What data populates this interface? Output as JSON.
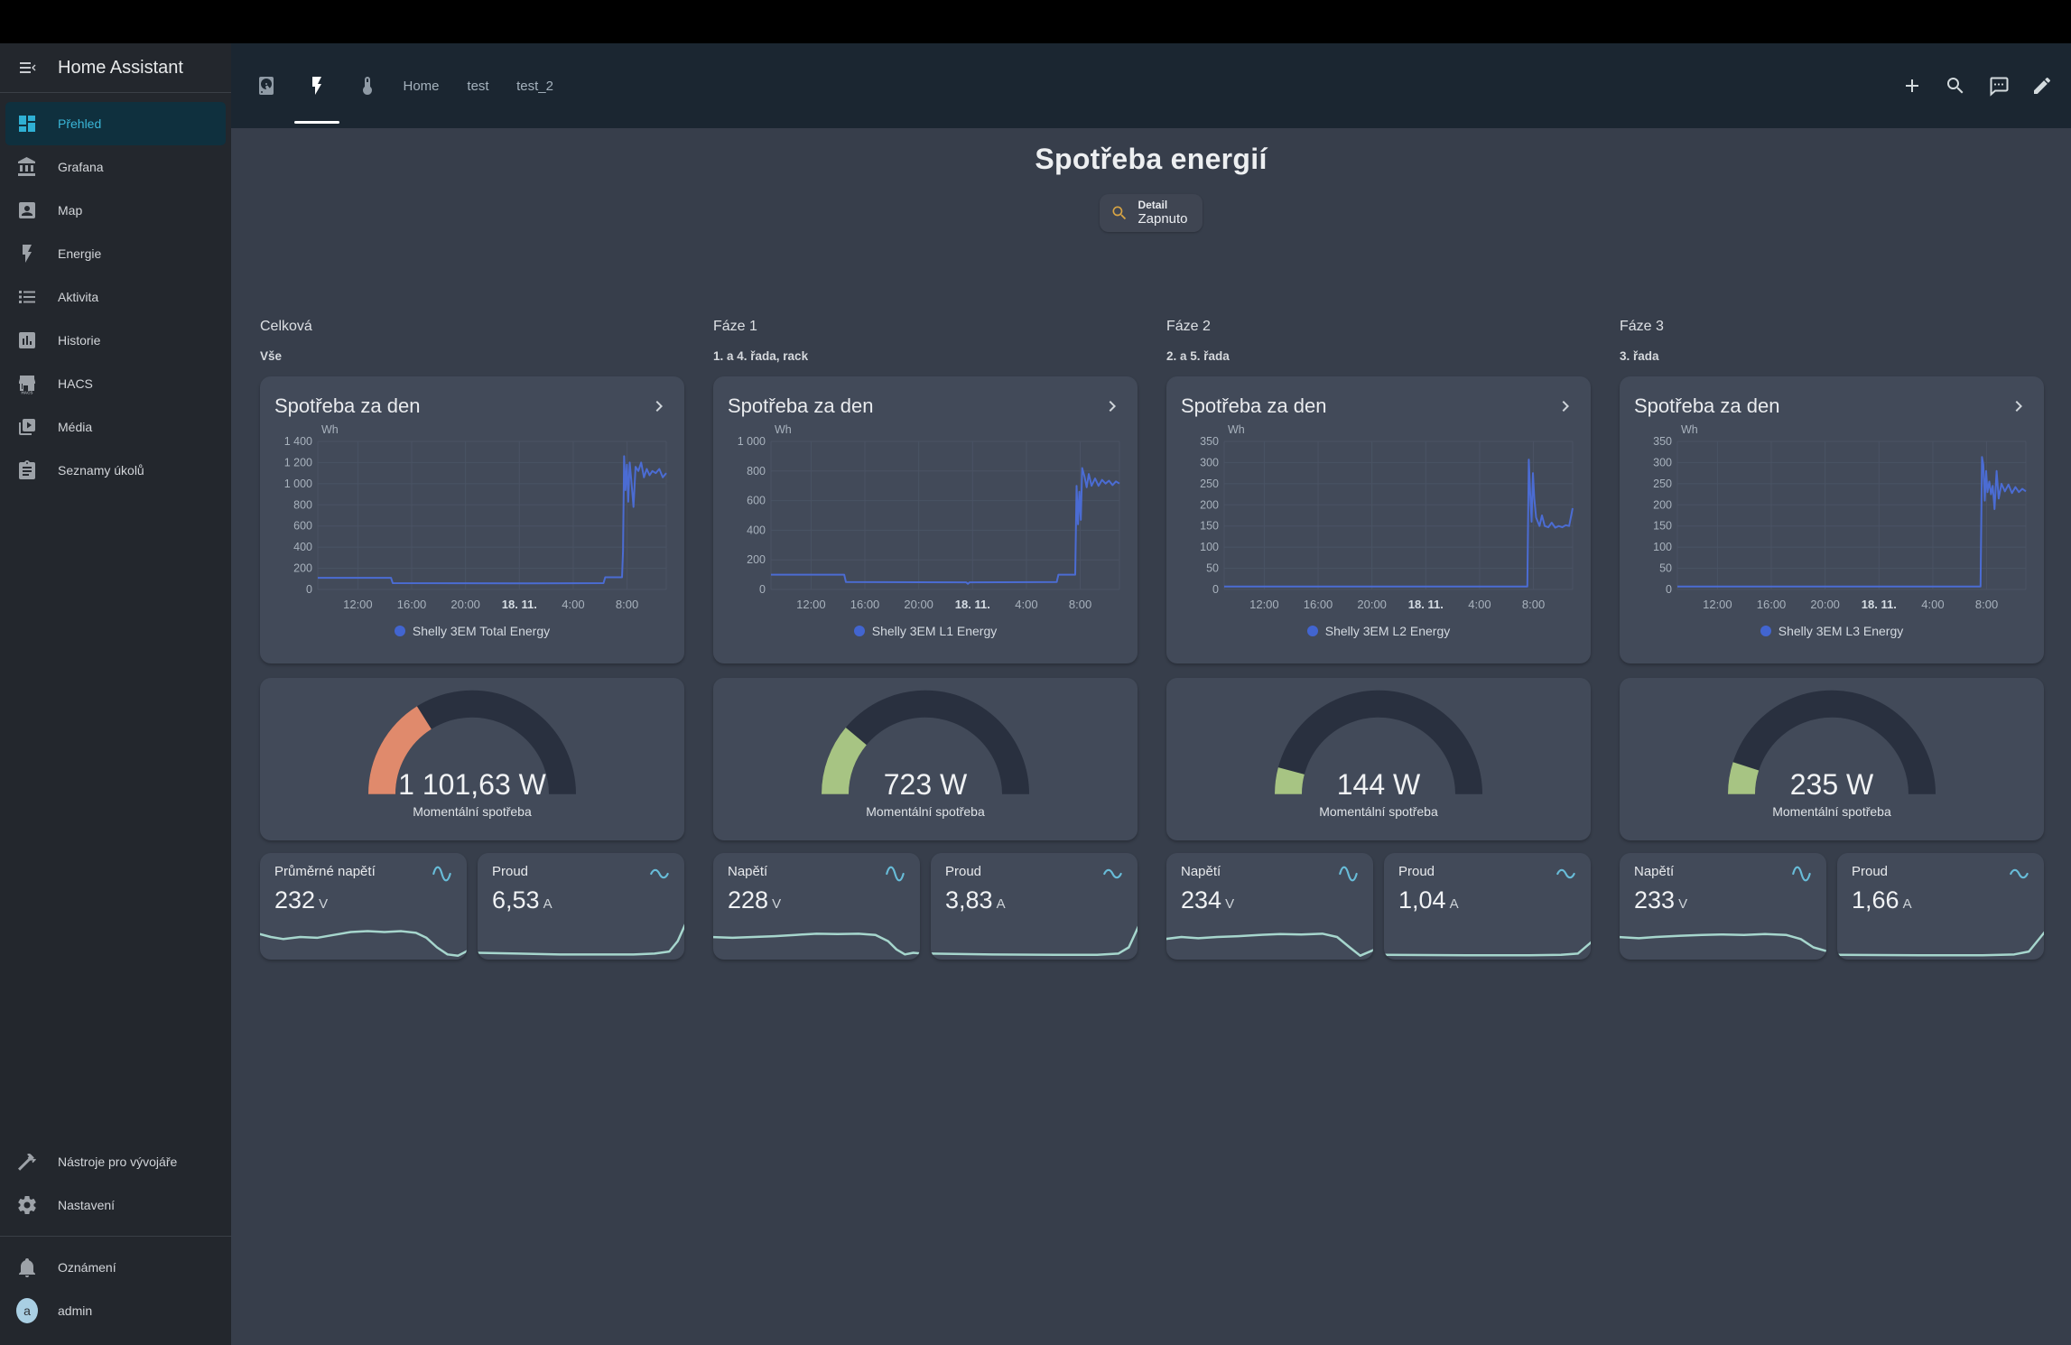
{
  "app": {
    "title": "Home Assistant"
  },
  "topbar": {
    "tabs": [
      {
        "icon": "harddisk",
        "label": "",
        "active": false
      },
      {
        "icon": "flash",
        "label": "",
        "active": true
      },
      {
        "icon": "thermometer",
        "label": "",
        "active": false
      },
      {
        "icon": "",
        "label": "Home",
        "active": false
      },
      {
        "icon": "",
        "label": "test",
        "active": false
      },
      {
        "icon": "",
        "label": "test_2",
        "active": false
      }
    ],
    "actions": [
      "plus",
      "magnify",
      "comment-dots",
      "pencil"
    ]
  },
  "sidebar": {
    "items": [
      {
        "icon": "view-dashboard",
        "label": "Přehled",
        "active": true
      },
      {
        "icon": "bank",
        "label": "Grafana",
        "active": false
      },
      {
        "icon": "account-box",
        "label": "Map",
        "active": false
      },
      {
        "icon": "flash",
        "label": "Energie",
        "active": false
      },
      {
        "icon": "format-list",
        "label": "Aktivita",
        "active": false
      },
      {
        "icon": "chart-box",
        "label": "Historie",
        "active": false
      },
      {
        "icon": "store",
        "label": "HACS",
        "active": false
      },
      {
        "icon": "play-box",
        "label": "Média",
        "active": false
      },
      {
        "icon": "clipboard-list",
        "label": "Seznamy úkolů",
        "active": false
      }
    ],
    "footer_items": [
      {
        "icon": "hammer",
        "label": "Nástroje pro vývojáře"
      },
      {
        "icon": "cog",
        "label": "Nastavení"
      }
    ],
    "notifications": {
      "label": "Oznámení"
    },
    "user": {
      "avatar_letter": "a",
      "label": "admin"
    }
  },
  "page": {
    "title": "Spotřeba energií",
    "chip": {
      "name": "Detail",
      "state": "Zapnuto"
    }
  },
  "columns": [
    {
      "header": "Celková",
      "subheader": "Vše",
      "gauge": {
        "value": "1 101,63 W",
        "label": "Momentální spotřeba",
        "fill_deg": 58,
        "color": "#e08a6c"
      },
      "sensors": [
        {
          "name": "Průměrné napětí",
          "value": "232",
          "unit": "V",
          "icon": "sine-wave",
          "spark": [
            [
              0,
              0.42
            ],
            [
              0.06,
              0.5
            ],
            [
              0.12,
              0.55
            ],
            [
              0.2,
              0.5
            ],
            [
              0.28,
              0.52
            ],
            [
              0.36,
              0.45
            ],
            [
              0.44,
              0.38
            ],
            [
              0.52,
              0.36
            ],
            [
              0.6,
              0.38
            ],
            [
              0.68,
              0.36
            ],
            [
              0.75,
              0.4
            ],
            [
              0.8,
              0.52
            ],
            [
              0.85,
              0.75
            ],
            [
              0.9,
              0.92
            ],
            [
              0.95,
              0.95
            ],
            [
              1,
              0.82
            ]
          ]
        },
        {
          "name": "Proud",
          "value": "6,53",
          "unit": "A",
          "icon": "current-ac",
          "spark": [
            [
              0,
              0.88
            ],
            [
              0.2,
              0.9
            ],
            [
              0.4,
              0.92
            ],
            [
              0.6,
              0.92
            ],
            [
              0.75,
              0.92
            ],
            [
              0.85,
              0.9
            ],
            [
              0.92,
              0.85
            ],
            [
              0.96,
              0.6
            ],
            [
              1,
              0.15
            ]
          ]
        }
      ]
    },
    {
      "header": "Fáze 1",
      "subheader": "1. a 4. řada, rack",
      "gauge": {
        "value": "723 W",
        "label": "Momentální spotřeba",
        "fill_deg": 40,
        "color": "#a7c483"
      },
      "sensors": [
        {
          "name": "Napětí",
          "value": "228",
          "unit": "V",
          "icon": "sine-wave",
          "spark": [
            [
              0,
              0.5
            ],
            [
              0.1,
              0.52
            ],
            [
              0.2,
              0.5
            ],
            [
              0.3,
              0.48
            ],
            [
              0.4,
              0.45
            ],
            [
              0.5,
              0.42
            ],
            [
              0.6,
              0.43
            ],
            [
              0.7,
              0.42
            ],
            [
              0.78,
              0.45
            ],
            [
              0.84,
              0.6
            ],
            [
              0.88,
              0.8
            ],
            [
              0.92,
              0.92
            ],
            [
              0.96,
              0.88
            ],
            [
              1,
              0.9
            ]
          ]
        },
        {
          "name": "Proud",
          "value": "3,83",
          "unit": "A",
          "icon": "current-ac",
          "spark": [
            [
              0,
              0.9
            ],
            [
              0.3,
              0.92
            ],
            [
              0.6,
              0.93
            ],
            [
              0.8,
              0.93
            ],
            [
              0.9,
              0.9
            ],
            [
              0.95,
              0.75
            ],
            [
              1,
              0.2
            ]
          ]
        }
      ]
    },
    {
      "header": "Fáze 2",
      "subheader": "2. a 5. řada",
      "gauge": {
        "value": "144 W",
        "label": "Momentální spotřeba",
        "fill_deg": 15,
        "color": "#a7c483"
      },
      "sensors": [
        {
          "name": "Napětí",
          "value": "234",
          "unit": "V",
          "icon": "sine-wave",
          "spark": [
            [
              0,
              0.55
            ],
            [
              0.08,
              0.5
            ],
            [
              0.16,
              0.53
            ],
            [
              0.25,
              0.5
            ],
            [
              0.35,
              0.48
            ],
            [
              0.45,
              0.45
            ],
            [
              0.55,
              0.43
            ],
            [
              0.65,
              0.44
            ],
            [
              0.75,
              0.42
            ],
            [
              0.82,
              0.5
            ],
            [
              0.88,
              0.75
            ],
            [
              0.93,
              0.95
            ],
            [
              1,
              0.8
            ]
          ]
        },
        {
          "name": "Proud",
          "value": "1,04",
          "unit": "A",
          "icon": "current-ac",
          "spark": [
            [
              0,
              0.93
            ],
            [
              0.4,
              0.94
            ],
            [
              0.7,
              0.94
            ],
            [
              0.85,
              0.93
            ],
            [
              0.93,
              0.9
            ],
            [
              1,
              0.6
            ]
          ]
        }
      ]
    },
    {
      "header": "Fáze 3",
      "subheader": "3. řada",
      "gauge": {
        "value": "235 W",
        "label": "Momentální spotřeba",
        "fill_deg": 18,
        "color": "#a7c483"
      },
      "sensors": [
        {
          "name": "Napětí",
          "value": "233",
          "unit": "V",
          "icon": "sine-wave",
          "spark": [
            [
              0,
              0.5
            ],
            [
              0.1,
              0.53
            ],
            [
              0.18,
              0.5
            ],
            [
              0.3,
              0.47
            ],
            [
              0.4,
              0.45
            ],
            [
              0.5,
              0.44
            ],
            [
              0.6,
              0.45
            ],
            [
              0.7,
              0.43
            ],
            [
              0.8,
              0.45
            ],
            [
              0.87,
              0.55
            ],
            [
              0.93,
              0.75
            ],
            [
              1,
              0.85
            ]
          ]
        },
        {
          "name": "Proud",
          "value": "1,66",
          "unit": "A",
          "icon": "current-ac",
          "spark": [
            [
              0,
              0.93
            ],
            [
              0.4,
              0.94
            ],
            [
              0.7,
              0.94
            ],
            [
              0.85,
              0.92
            ],
            [
              0.92,
              0.85
            ],
            [
              1,
              0.35
            ]
          ]
        }
      ]
    }
  ],
  "chart_data": [
    {
      "type": "line",
      "title": "Spotřeba za den",
      "ylabel": "Wh",
      "ymax": 1400,
      "yticks": [
        "1 400",
        "1 200",
        "1 000",
        "800",
        "600",
        "400",
        "200",
        "0"
      ],
      "xticks": [
        "12:00",
        "16:00",
        "20:00",
        "18. 11.",
        "4:00",
        "8:00"
      ],
      "bold_index": 3,
      "xfracs": [
        0.115,
        0.2695,
        0.424,
        0.5785,
        0.733,
        0.8875
      ],
      "legend": "Shelly 3EM Total Energy",
      "series": [
        [
          0,
          110
        ],
        [
          0.21,
          110
        ],
        [
          0.215,
          60
        ],
        [
          0.6,
          58
        ],
        [
          0.82,
          60
        ],
        [
          0.825,
          115
        ],
        [
          0.873,
          115
        ],
        [
          0.876,
          360
        ],
        [
          0.879,
          1260
        ],
        [
          0.883,
          940
        ],
        [
          0.887,
          1180
        ],
        [
          0.891,
          830
        ],
        [
          0.895,
          1200
        ],
        [
          0.9,
          1020
        ],
        [
          0.906,
          780
        ],
        [
          0.912,
          1160
        ],
        [
          0.92,
          1120
        ],
        [
          0.928,
          1200
        ],
        [
          0.936,
          1060
        ],
        [
          0.944,
          1140
        ],
        [
          0.952,
          1080
        ],
        [
          0.96,
          1120
        ],
        [
          0.97,
          1100
        ],
        [
          0.98,
          1140
        ],
        [
          0.99,
          1060
        ],
        [
          1,
          1100
        ]
      ]
    },
    {
      "type": "line",
      "title": "Spotřeba za den",
      "ylabel": "Wh",
      "ymax": 1000,
      "yticks": [
        "1 000",
        "800",
        "600",
        "400",
        "200",
        "0"
      ],
      "xticks": [
        "12:00",
        "16:00",
        "20:00",
        "18. 11.",
        "4:00",
        "8:00"
      ],
      "bold_index": 3,
      "xfracs": [
        0.115,
        0.2695,
        0.424,
        0.5785,
        0.733,
        0.8875
      ],
      "legend": "Shelly 3EM L1 Energy",
      "series": [
        [
          0,
          100
        ],
        [
          0.21,
          100
        ],
        [
          0.215,
          50
        ],
        [
          0.56,
          48
        ],
        [
          0.565,
          38
        ],
        [
          0.57,
          48
        ],
        [
          0.82,
          50
        ],
        [
          0.825,
          100
        ],
        [
          0.873,
          100
        ],
        [
          0.877,
          700
        ],
        [
          0.881,
          440
        ],
        [
          0.885,
          660
        ],
        [
          0.889,
          470
        ],
        [
          0.893,
          820
        ],
        [
          0.9,
          760
        ],
        [
          0.906,
          690
        ],
        [
          0.912,
          780
        ],
        [
          0.92,
          700
        ],
        [
          0.93,
          750
        ],
        [
          0.94,
          700
        ],
        [
          0.95,
          740
        ],
        [
          0.96,
          715
        ],
        [
          0.97,
          735
        ],
        [
          0.98,
          705
        ],
        [
          0.99,
          730
        ],
        [
          1,
          715
        ]
      ]
    },
    {
      "type": "line",
      "title": "Spotřeba za den",
      "ylabel": "Wh",
      "ymax": 350,
      "yticks": [
        "350",
        "300",
        "250",
        "200",
        "150",
        "100",
        "50",
        "0"
      ],
      "xticks": [
        "12:00",
        "16:00",
        "20:00",
        "18. 11.",
        "4:00",
        "8:00"
      ],
      "bold_index": 3,
      "xfracs": [
        0.115,
        0.2695,
        0.424,
        0.5785,
        0.733,
        0.8875
      ],
      "legend": "Shelly 3EM L2 Energy",
      "series": [
        [
          0,
          7
        ],
        [
          0.87,
          7
        ],
        [
          0.874,
          307
        ],
        [
          0.878,
          230
        ],
        [
          0.882,
          160
        ],
        [
          0.886,
          275
        ],
        [
          0.89,
          215
        ],
        [
          0.895,
          170
        ],
        [
          0.9,
          160
        ],
        [
          0.905,
          150
        ],
        [
          0.912,
          175
        ],
        [
          0.92,
          150
        ],
        [
          0.93,
          147
        ],
        [
          0.94,
          158
        ],
        [
          0.95,
          146
        ],
        [
          0.96,
          150
        ],
        [
          0.97,
          147
        ],
        [
          0.98,
          152
        ],
        [
          0.99,
          150
        ],
        [
          1,
          192
        ]
      ]
    },
    {
      "type": "line",
      "title": "Spotřeba za den",
      "ylabel": "Wh",
      "ymax": 350,
      "yticks": [
        "350",
        "300",
        "250",
        "200",
        "150",
        "100",
        "50",
        "0"
      ],
      "xticks": [
        "12:00",
        "16:00",
        "20:00",
        "18. 11.",
        "4:00",
        "8:00"
      ],
      "bold_index": 3,
      "xfracs": [
        0.115,
        0.2695,
        0.424,
        0.5785,
        0.733,
        0.8875
      ],
      "legend": "Shelly 3EM L3 Energy",
      "series": [
        [
          0,
          7
        ],
        [
          0.87,
          7
        ],
        [
          0.874,
          313
        ],
        [
          0.878,
          295
        ],
        [
          0.882,
          210
        ],
        [
          0.886,
          280
        ],
        [
          0.89,
          230
        ],
        [
          0.895,
          255
        ],
        [
          0.9,
          225
        ],
        [
          0.905,
          245
        ],
        [
          0.91,
          190
        ],
        [
          0.916,
          280
        ],
        [
          0.922,
          215
        ],
        [
          0.93,
          250
        ],
        [
          0.94,
          232
        ],
        [
          0.95,
          248
        ],
        [
          0.96,
          228
        ],
        [
          0.97,
          242
        ],
        [
          0.98,
          230
        ],
        [
          0.99,
          238
        ],
        [
          1,
          232
        ]
      ]
    }
  ],
  "colors": {
    "accent_cyan": "#3ab6d8",
    "chart_line": "#4b6cd3",
    "legend_dot": "#4265d0",
    "sparkline": "#a6d6cd",
    "gauge_track": "#29303f",
    "sensor_icon": "#68bcd8",
    "chip_icon": "#d9a544"
  }
}
